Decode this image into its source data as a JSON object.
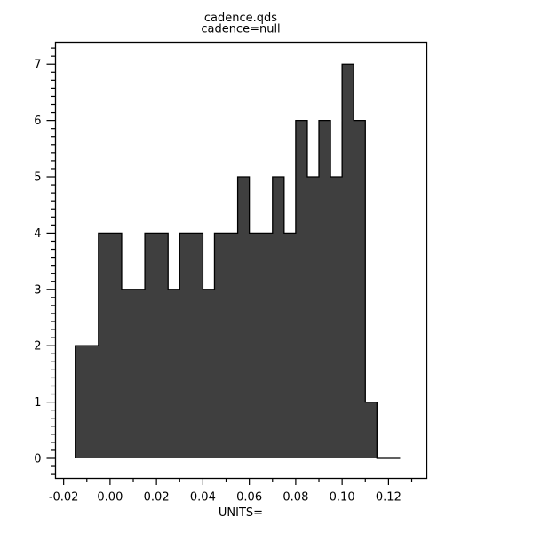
{
  "window": {
    "background": "#ffffff"
  },
  "title": {
    "line1": "cadence.qds",
    "line2": "cadence=null"
  },
  "axes": {
    "x_label": "UNITS=",
    "x_tick_labels": [
      "-0.02",
      "0.00",
      "0.02",
      "0.04",
      "0.06",
      "0.08",
      "0.10",
      "0.12"
    ],
    "y_tick_labels": [
      "0",
      "1",
      "2",
      "3",
      "4",
      "5",
      "6",
      "7"
    ]
  },
  "chart_data": {
    "type": "bar",
    "subtype": "histogram-step-filled",
    "title": "cadence.qds",
    "subtitle": "cadence=null",
    "xlabel": "UNITS=",
    "ylabel": "",
    "bin_start": -0.015,
    "bin_width": 0.005,
    "counts": [
      2,
      2,
      4,
      4,
      3,
      3,
      4,
      4,
      3,
      4,
      4,
      3,
      4,
      4,
      5,
      4,
      4,
      5,
      4,
      6,
      5,
      6,
      5,
      7,
      6,
      1,
      0,
      0
    ],
    "bin_edges": [
      -0.015,
      -0.01,
      -0.005,
      0.0,
      0.005,
      0.01,
      0.015,
      0.02,
      0.025,
      0.03,
      0.035,
      0.04,
      0.045,
      0.05,
      0.055,
      0.06,
      0.065,
      0.07,
      0.075,
      0.08,
      0.085,
      0.09,
      0.095,
      0.1,
      0.105,
      0.11,
      0.115,
      0.12,
      0.125
    ],
    "x_major_ticks": [
      -0.02,
      0.0,
      0.02,
      0.04,
      0.06,
      0.08,
      0.1,
      0.12
    ],
    "x_minor_ticks": [
      -0.01,
      0.01,
      0.03,
      0.05,
      0.07,
      0.09,
      0.11,
      0.13
    ],
    "y_major_ticks": [
      0,
      1,
      2,
      3,
      4,
      5,
      6,
      7
    ],
    "y_minor_divisions_per_unit": 7,
    "xlim": [
      -0.0235,
      0.1365
    ],
    "ylim": [
      -0.355,
      7.39
    ],
    "grid": false,
    "legend": null,
    "bar_fill_color": "#3f3f3f",
    "line_color": "#000000"
  }
}
